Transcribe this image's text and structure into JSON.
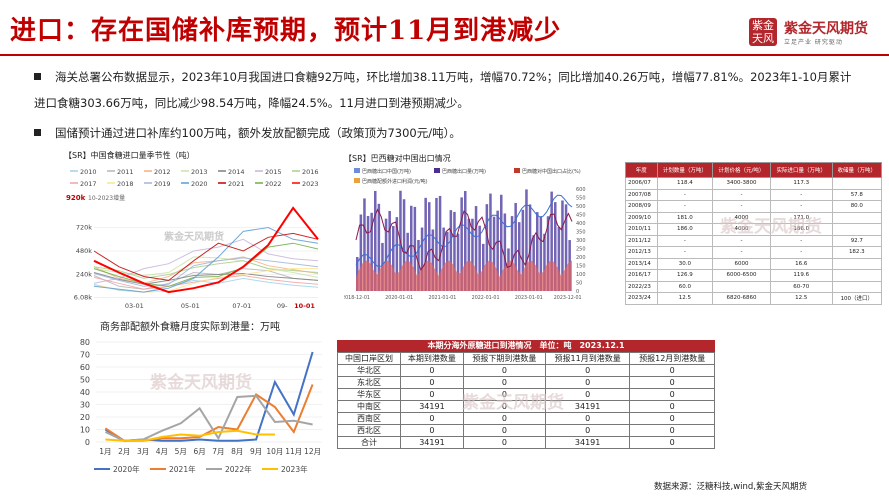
{
  "header": {
    "title": "进口：存在国储补库预期，预计11月到港减少",
    "logo_mark": "紫金天风",
    "logo_name": "紫金天风期货",
    "logo_sub": "立足产业 研究驱动"
  },
  "bullets": [
    "海关总署公布数据显示，2023年10月我国进口食糖92万吨，环比增加38.11万吨，增幅70.72%；同比增加40.26万吨，增幅77.81%。2023年1-10月累计进口食糖303.66万吨，同比减少98.54万吨，降幅24.5%。11月进口到港预期减少。",
    "国储预计通过进口补库约100万吨，额外发放配额完成（政策顶为7300元/吨）。"
  ],
  "watermark": "紫金天风期货",
  "chart_data": [
    {
      "type": "line",
      "title": "【SR】中国食糖进口量季节性（吨）",
      "legend": [
        "2010",
        "2011",
        "2012",
        "2013",
        "2014",
        "2015",
        "2016",
        "2017",
        "2018",
        "2019",
        "2020",
        "2021",
        "2022",
        "2023"
      ],
      "x_ticks": [
        "03-01",
        "05-01",
        "07-01",
        "09-",
        "10-01"
      ],
      "y_ticks": [
        "6.08k",
        "240k",
        "480k",
        "720k"
      ],
      "highlight_label": "920k",
      "highlight_note": "10-2023增量",
      "source_note": "紫金天风期货",
      "colors": {
        "2010": "#9fd3e8",
        "2011": "#b5b5b5",
        "2012": "#f4b183",
        "2013": "#c9e3a5",
        "2014": "#7f7f7f",
        "2015": "#c7b4d9",
        "2016": "#a9d08e",
        "2017": "#f0a3a3",
        "2018": "#ffe08a",
        "2019": "#9fb6d9",
        "2020": "#5b9bd5",
        "2021": "#c00000",
        "2022": "#70ad47",
        "2023": "#ff0000"
      },
      "series": [
        {
          "name": "2010",
          "values": [
            140,
            80,
            60,
            120,
            180,
            150,
            200,
            160,
            130,
            110
          ]
        },
        {
          "name": "2011",
          "values": [
            230,
            120,
            90,
            150,
            260,
            240,
            300,
            280,
            200,
            180
          ]
        },
        {
          "name": "2012",
          "values": [
            320,
            200,
            150,
            220,
            360,
            380,
            420,
            330,
            290,
            250
          ]
        },
        {
          "name": "2013",
          "values": [
            300,
            260,
            230,
            260,
            420,
            410,
            380,
            300,
            260,
            210
          ]
        },
        {
          "name": "2014",
          "values": [
            260,
            190,
            140,
            180,
            230,
            240,
            250,
            220,
            200,
            180
          ]
        },
        {
          "name": "2015",
          "values": [
            150,
            200,
            300,
            350,
            480,
            520,
            600,
            450,
            400,
            380
          ]
        },
        {
          "name": "2016",
          "values": [
            320,
            280,
            200,
            240,
            310,
            350,
            380,
            300,
            280,
            260
          ]
        },
        {
          "name": "2017",
          "values": [
            210,
            150,
            90,
            120,
            160,
            200,
            230,
            190,
            160,
            140
          ]
        },
        {
          "name": "2018",
          "values": [
            130,
            90,
            60,
            70,
            150,
            210,
            240,
            280,
            300,
            300
          ]
        },
        {
          "name": "2019",
          "values": [
            250,
            180,
            120,
            140,
            330,
            380,
            410,
            380,
            350,
            320
          ]
        },
        {
          "name": "2020",
          "values": [
            120,
            90,
            60,
            100,
            200,
            420,
            680,
            720,
            600,
            560
          ]
        },
        {
          "name": "2021",
          "values": [
            480,
            320,
            220,
            180,
            380,
            560,
            480,
            620,
            660,
            600
          ]
        },
        {
          "name": "2022",
          "values": [
            300,
            220,
            150,
            120,
            210,
            220,
            310,
            520,
            560,
            500
          ]
        },
        {
          "name": "2023",
          "values": [
            380,
            260,
            150,
            60,
            100,
            160,
            320,
            540,
            920,
            600
          ]
        }
      ]
    },
    {
      "type": "bar",
      "title": "【SR】巴西糖对中国出口情况",
      "legend": [
        "巴西糖出口中国(万吨)",
        "巴西糖出口量(万吨)",
        "巴西糖对中国出口占比(%)",
        "巴西糖配额外进口利润(元/吨)"
      ],
      "x_ticks": [
        "2018-12-01",
        "2020-01-01",
        "2021-01-01",
        "2022-01-01",
        "2023-01-01",
        "2023-12-01"
      ],
      "y_left_ticks": [
        "0",
        "50",
        "100",
        "150",
        "200",
        "250",
        "300",
        "350",
        "400",
        "450",
        "500",
        "550",
        "600"
      ],
      "y_right_ticks": [
        "0",
        "50",
        "100",
        "150",
        "200",
        "250",
        "300",
        "350",
        "400",
        "450",
        "500",
        "550",
        "600"
      ]
    },
    {
      "type": "line",
      "title": "商务部配额外食糖月度实际到港量：万吨",
      "categories": [
        "1月",
        "2月",
        "3月",
        "4月",
        "5月",
        "6月",
        "7月",
        "8月",
        "9月",
        "10月",
        "11月",
        "12月"
      ],
      "ylim": [
        0,
        80
      ],
      "y_ticks": [
        0,
        10,
        20,
        30,
        40,
        50,
        60,
        70,
        80
      ],
      "series": [
        {
          "name": "2020年",
          "color": "#4472c4",
          "values": [
            10,
            1,
            2,
            1,
            1,
            2,
            1,
            1,
            2,
            48,
            22,
            72
          ]
        },
        {
          "name": "2021年",
          "color": "#ed7d31",
          "values": [
            11,
            1,
            1,
            3,
            3,
            4,
            12,
            10,
            38,
            28,
            8,
            46
          ]
        },
        {
          "name": "2022年",
          "color": "#a5a5a5",
          "values": [
            8,
            1,
            2,
            9,
            15,
            27,
            3,
            36,
            37,
            16,
            17,
            14
          ]
        },
        {
          "name": "2023年",
          "color": "#ffc000",
          "values": [
            2,
            1,
            1,
            4,
            6,
            5,
            8,
            9,
            6,
            6,
            null,
            null
          ]
        }
      ]
    }
  ],
  "import_table": {
    "headers": [
      "年度",
      "计划数量（万吨）",
      "计划价格（元/吨）",
      "实际进口量（万吨）",
      "收储量（万吨）"
    ],
    "rows": [
      [
        "2006/07",
        "118.4",
        "3400-3800",
        "117.3",
        ""
      ],
      [
        "2007/08",
        "-",
        "-",
        "-",
        "57.8"
      ],
      [
        "2008/09",
        "-",
        "-",
        "-",
        "80.0"
      ],
      [
        "2009/10",
        "181.0",
        "4000",
        "171.0",
        ""
      ],
      [
        "2010/11",
        "186.0",
        "4000",
        "186.0",
        ""
      ],
      [
        "2011/12",
        "-",
        "-",
        "-",
        "92.7"
      ],
      [
        "2012/13",
        "-",
        "-",
        "-",
        "182.3"
      ],
      [
        "2013/14",
        "30.0",
        "6000",
        "16.6",
        ""
      ],
      [
        "2016/17",
        "126.9",
        "6000-6500",
        "119.6",
        ""
      ],
      [
        "2022/23",
        "60.0",
        "",
        "60-70",
        ""
      ],
      [
        "2023/24",
        "12.5",
        "6820-6860",
        "12.5",
        "100（进口）"
      ]
    ]
  },
  "arrival_table": {
    "title": "本期分海外原糖进口到港情况　单位：吨　2023.12.1",
    "headers": [
      "中国口岸区划",
      "本期到港数量",
      "预报下期到港数量",
      "预报11月到港数量",
      "预报12月到港数量"
    ],
    "rows": [
      [
        "华北区",
        "0",
        "0",
        "0",
        "0"
      ],
      [
        "东北区",
        "0",
        "0",
        "0",
        "0"
      ],
      [
        "华东区",
        "0",
        "0",
        "0",
        "0"
      ],
      [
        "中南区",
        "34191",
        "0",
        "34191",
        "0"
      ],
      [
        "西南区",
        "0",
        "0",
        "0",
        "0"
      ],
      [
        "西北区",
        "0",
        "0",
        "0",
        "0"
      ],
      [
        "合计",
        "34191",
        "0",
        "34191",
        "0"
      ]
    ]
  },
  "source": "数据来源：泛糖科技,wind,紫金天风期货"
}
